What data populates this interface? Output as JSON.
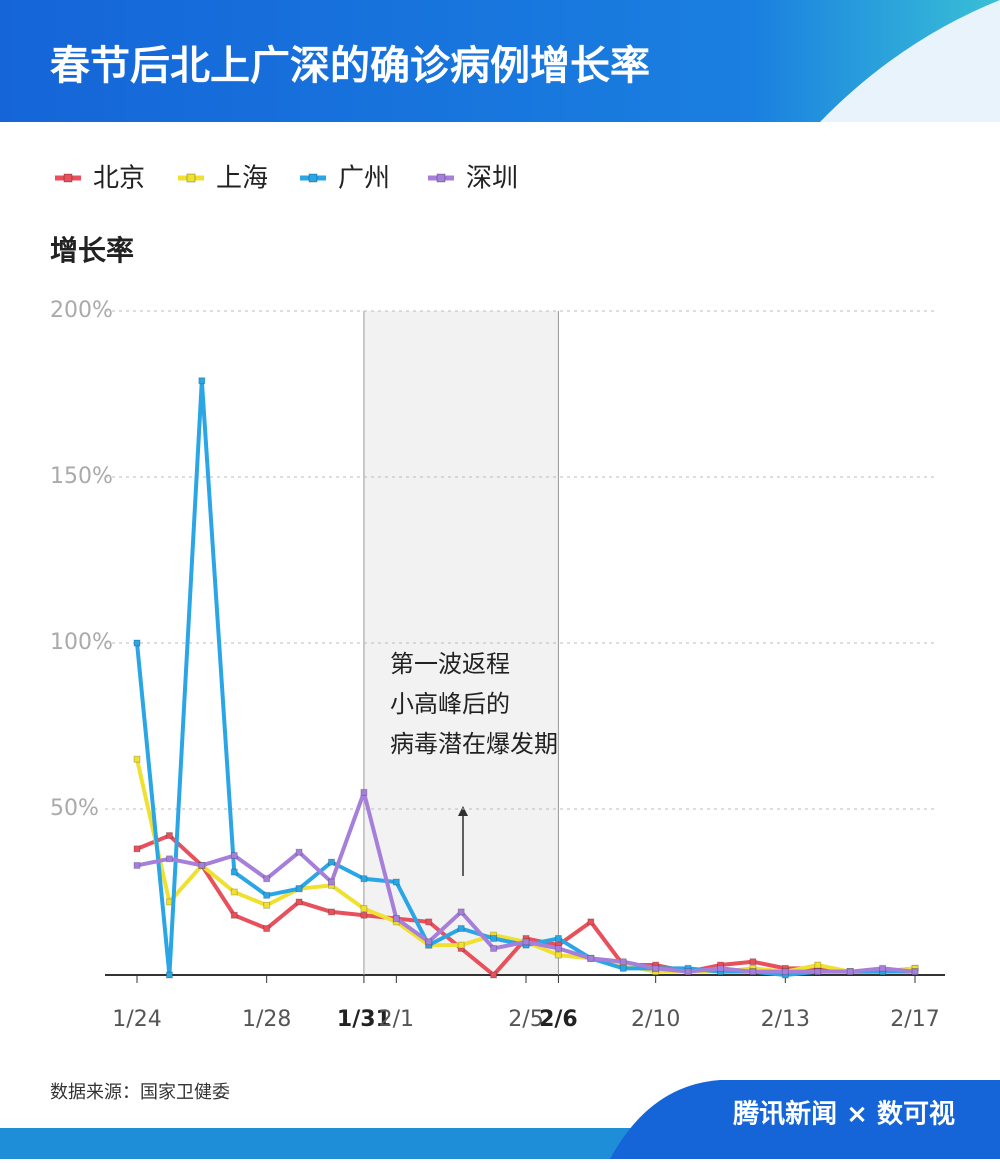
{
  "chart_data": {
    "type": "line",
    "title": "春节后北上广深的确诊病例增长率",
    "y_label": "增长率",
    "categories": [
      "1/24",
      null,
      null,
      null,
      "1/28",
      null,
      null,
      "1/31",
      "2/1",
      null,
      null,
      null,
      "2/5",
      "2/6",
      null,
      null,
      "2/10",
      null,
      null,
      null,
      "2/13",
      null,
      null,
      null,
      "2/17"
    ],
    "series": [
      {
        "name": "北京",
        "color": "#e8505b",
        "values": [
          38,
          42,
          33,
          18,
          14,
          22,
          19,
          18,
          17,
          16,
          8,
          0,
          11,
          9,
          16,
          3,
          3,
          1,
          3,
          4,
          2,
          2,
          1,
          1,
          2
        ]
      },
      {
        "name": "上海",
        "color": "#f0e030",
        "values": [
          65,
          22,
          33,
          25,
          21,
          26,
          27,
          20,
          16,
          9,
          9,
          12,
          10,
          6,
          5,
          3,
          1,
          1,
          1,
          2,
          1,
          3,
          1,
          1,
          2
        ]
      },
      {
        "name": "广州",
        "color": "#2aa6e6",
        "values": [
          100,
          0,
          179,
          31,
          24,
          26,
          34,
          29,
          28,
          9,
          14,
          11,
          9,
          11,
          5,
          2,
          2,
          2,
          1,
          1,
          0,
          1,
          1,
          1,
          1
        ]
      },
      {
        "name": "深圳",
        "color": "#a57fda",
        "values": [
          33,
          35,
          33,
          36,
          29,
          37,
          28,
          55,
          17,
          10,
          19,
          8,
          10,
          8,
          5,
          4,
          2,
          1,
          2,
          1,
          1,
          1,
          1,
          2,
          1
        ]
      }
    ],
    "ylim": [
      0,
      200
    ],
    "yticks": [
      {
        "value": 50,
        "label": "50%"
      },
      {
        "value": 100,
        "label": "100%"
      },
      {
        "value": 150,
        "label": "150%"
      },
      {
        "value": 200,
        "label": "200%"
      }
    ],
    "grid": true,
    "highlight_range": [
      7,
      13
    ],
    "annotation": [
      "第一波返程",
      "小高峰后的",
      "病毒潜在爆发期"
    ],
    "source": "数据来源：国家卫健委",
    "brand": "腾讯新闻 × 数可视"
  }
}
